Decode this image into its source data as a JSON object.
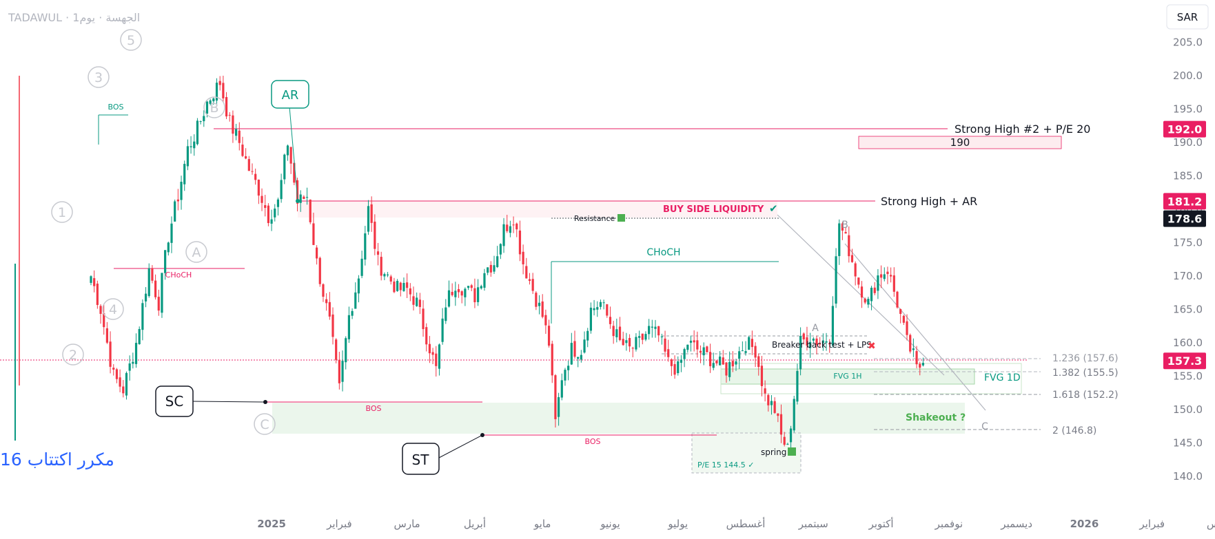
{
  "header": {
    "symbol_text": "TADAWUL · الجهسة · يوم1",
    "currency": "SAR"
  },
  "watermark": "مكرر اكتتاب 16",
  "colors": {
    "up": "#089981",
    "down": "#f23645",
    "price_red": "#e91e63",
    "black_tag": "#131722",
    "fvg_fill": "#e8f5e9",
    "shakeout_fill": "#c8e6c9",
    "grid_text": "#6a6d78",
    "wave": "#c7c9cf"
  },
  "chart_data": {
    "type": "candlestick",
    "ylim": [
      138,
      207
    ],
    "y_ticks": [
      140,
      145,
      150,
      155,
      160,
      165,
      170,
      175,
      180,
      185,
      190,
      195,
      200,
      205
    ],
    "y_tick_labels": [
      "140.0",
      "145.0",
      "150.0",
      "155.0",
      "160.0",
      "165.0",
      "170.0",
      "175.0",
      "180.0",
      "185.0",
      "190.0",
      "195.0",
      "200.0",
      "205.0"
    ],
    "x_ticks": [
      "2025",
      "فبراير",
      "مارس",
      "أبريل",
      "مايو",
      "يونيو",
      "يوليو",
      "أغسطس",
      "سبتمبر",
      "أكتوبر",
      "نوفمبر",
      "ديسمبر",
      "2026",
      "فبراير",
      "مارس"
    ],
    "x_tick_bars": [
      56,
      77,
      98,
      119,
      140,
      161,
      182,
      203,
      224,
      245,
      266,
      287,
      308,
      329,
      350
    ],
    "bars_total": 352,
    "path": [
      [
        0,
        170
      ],
      [
        3,
        165
      ],
      [
        7,
        155
      ],
      [
        10,
        153
      ],
      [
        14,
        160
      ],
      [
        18,
        171
      ],
      [
        21,
        166
      ],
      [
        24,
        176
      ],
      [
        27,
        182
      ],
      [
        30,
        189
      ],
      [
        33,
        192
      ],
      [
        36,
        196
      ],
      [
        40,
        199
      ],
      [
        43,
        193
      ],
      [
        46,
        190
      ],
      [
        49,
        186
      ],
      [
        52,
        183
      ],
      [
        55,
        179
      ],
      [
        58,
        181
      ],
      [
        61,
        190
      ],
      [
        64,
        181
      ],
      [
        67,
        182
      ],
      [
        70,
        172
      ],
      [
        74,
        163
      ],
      [
        77,
        153
      ],
      [
        80,
        164
      ],
      [
        83,
        170
      ],
      [
        86,
        180
      ],
      [
        89,
        172
      ],
      [
        92,
        170
      ],
      [
        95,
        168
      ],
      [
        98,
        168
      ],
      [
        101,
        166
      ],
      [
        104,
        161
      ],
      [
        107,
        156
      ],
      [
        110,
        166
      ],
      [
        113,
        169
      ],
      [
        116,
        168
      ],
      [
        119,
        167
      ],
      [
        122,
        171
      ],
      [
        125,
        172
      ],
      [
        128,
        177
      ],
      [
        131,
        179
      ],
      [
        134,
        172
      ],
      [
        137,
        168
      ],
      [
        140,
        164
      ],
      [
        142,
        160
      ],
      [
        144,
        148
      ],
      [
        146,
        155
      ],
      [
        149,
        159
      ],
      [
        152,
        159
      ],
      [
        155,
        165
      ],
      [
        158,
        166
      ],
      [
        161,
        163
      ],
      [
        164,
        160
      ],
      [
        167,
        159
      ],
      [
        170,
        160
      ],
      [
        173,
        162
      ],
      [
        176,
        161
      ],
      [
        179,
        157
      ],
      [
        182,
        156
      ],
      [
        185,
        160
      ],
      [
        188,
        159
      ],
      [
        191,
        158
      ],
      [
        194,
        157
      ],
      [
        197,
        156
      ],
      [
        200,
        158
      ],
      [
        203,
        160
      ],
      [
        206,
        159
      ],
      [
        209,
        152
      ],
      [
        212,
        150
      ],
      [
        214,
        146
      ],
      [
        216,
        144
      ],
      [
        218,
        152
      ],
      [
        220,
        160
      ],
      [
        223,
        161
      ],
      [
        226,
        160
      ],
      [
        229,
        161
      ],
      [
        232,
        178
      ],
      [
        235,
        174
      ],
      [
        238,
        169
      ],
      [
        241,
        166
      ],
      [
        244,
        170
      ],
      [
        247,
        171
      ],
      [
        250,
        166
      ],
      [
        253,
        160
      ],
      [
        255,
        158
      ],
      [
        256,
        156
      ],
      [
        258,
        157
      ]
    ],
    "series": [
      {
        "name": "High",
        "values": [
          192.0
        ],
        "label": "192.0"
      },
      {
        "name": "High",
        "values": [
          181.2
        ],
        "label": "181.2"
      },
      {
        "name": "",
        "values": [
          178.6
        ],
        "label": "178.6"
      },
      {
        "name": "",
        "values": [
          157.3
        ],
        "label": "157.3"
      }
    ],
    "price_tags": [
      {
        "label": "192.0",
        "value": 192.0,
        "color": "#e91e63"
      },
      {
        "label": "181.2",
        "value": 181.2,
        "color": "#e91e63"
      },
      {
        "label": "178.6",
        "value": 178.6,
        "color": "#131722"
      },
      {
        "label": "157.3",
        "value": 157.3,
        "color": "#e91e63"
      }
    ],
    "annotations": {
      "strong_high_2": "Strong High #2 + P/E 20",
      "level_190": "190",
      "strong_high_ar": "Strong High  + AR",
      "buy_side": "BUY SIDE LIQUIDITY",
      "resistance": "Resistance",
      "choch_mid": "CHoCH",
      "choch_left": "CHoCH",
      "bos_top": "BOS",
      "bos_mid": "BOS",
      "bos_low": "BOS",
      "ar": "AR",
      "sc": "SC",
      "st": "ST",
      "breaker": "Breaker back test + LPS",
      "fvg_1h": "FVG 1H",
      "fvg_1d": "FVG 1D",
      "shakeout": "Shakeout ?",
      "spring": "spring",
      "pe15": "P/E 15   144.5 ✓",
      "fib_1": "1.236 (157.6)",
      "fib_2": "1.382 (155.5)",
      "fib_3": "1.618 (152.2)",
      "fib_4": "2 (146.8)",
      "wave_b": "B",
      "wave_a": "A",
      "wave_c": "C",
      "circles": [
        "5",
        "3",
        "B",
        "1",
        "A",
        "4",
        "2",
        "C"
      ]
    }
  }
}
